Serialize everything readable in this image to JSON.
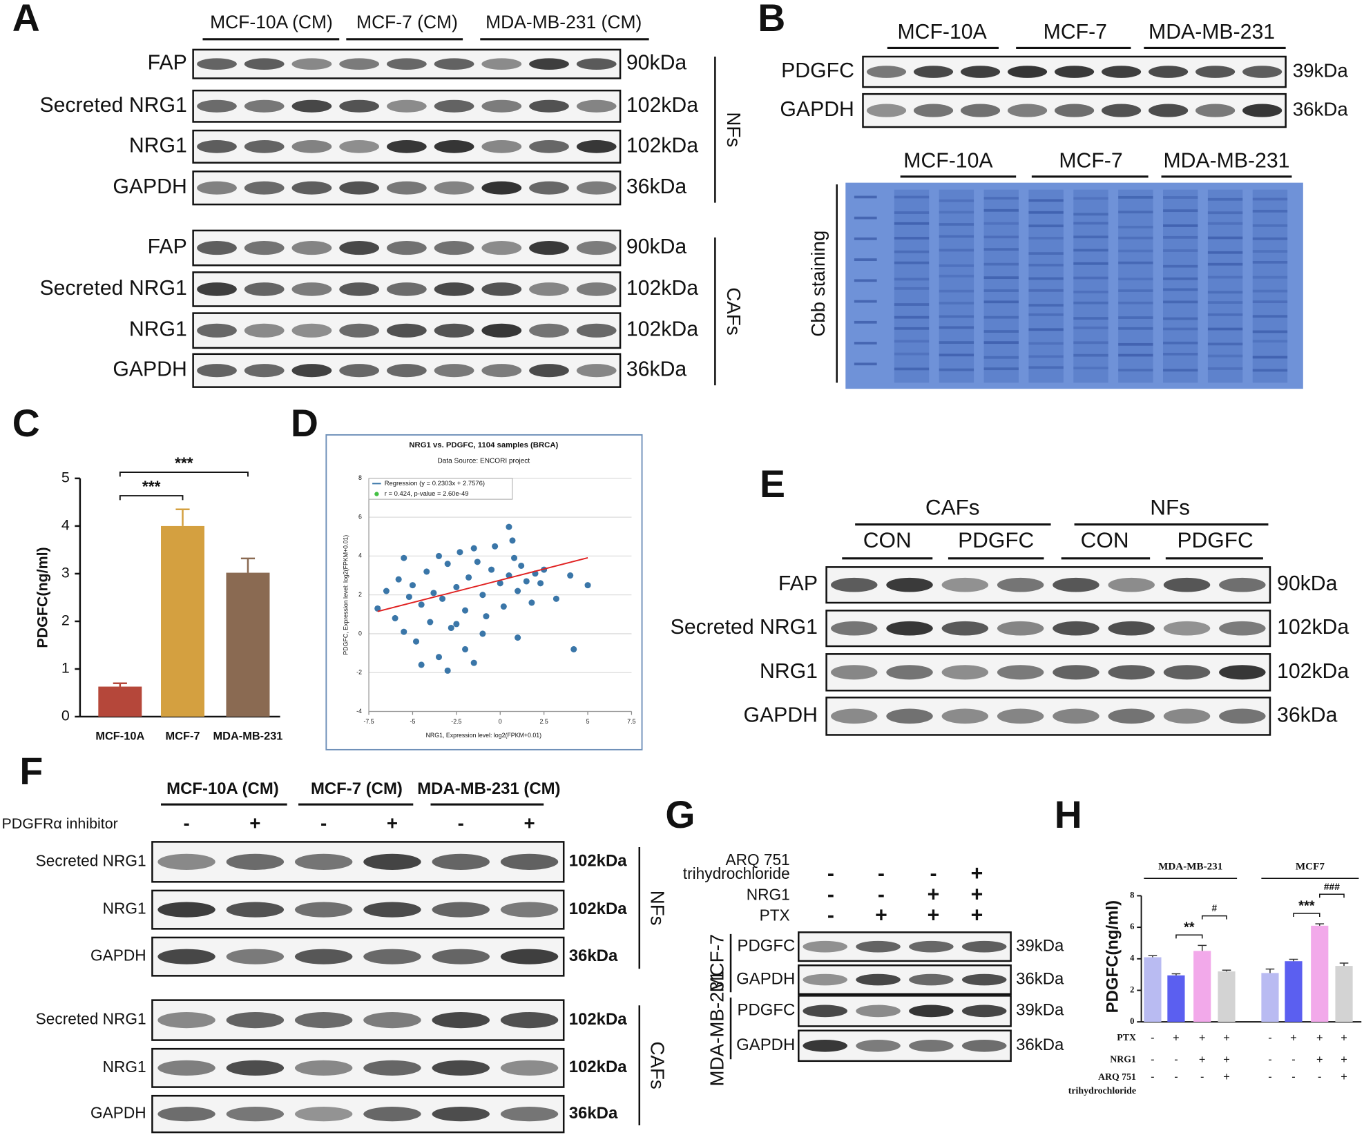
{
  "panel_letters": [
    "A",
    "B",
    "C",
    "D",
    "E",
    "F",
    "G",
    "H"
  ],
  "A": {
    "groups": [
      "MCF-10A (CM)",
      "MCF-7 (CM)",
      "MDA-MB-231 (CM)"
    ],
    "sets": [
      {
        "label": "NFs",
        "blots": [
          {
            "name": "FAP",
            "size": "90kDa"
          },
          {
            "name": "Secreted NRG1",
            "size": "102kDa"
          },
          {
            "name": "NRG1",
            "size": "102kDa"
          },
          {
            "name": "GAPDH",
            "size": "36kDa"
          }
        ]
      },
      {
        "label": "CAFs",
        "blots": [
          {
            "name": "FAP",
            "size": "90kDa"
          },
          {
            "name": "Secreted NRG1",
            "size": "102kDa"
          },
          {
            "name": "NRG1",
            "size": "102kDa"
          },
          {
            "name": "GAPDH",
            "size": "36kDa"
          }
        ]
      }
    ]
  },
  "B": {
    "groups": [
      "MCF-10A",
      "MCF-7",
      "MDA-MB-231"
    ],
    "blots": [
      {
        "name": "PDGFC",
        "size": "39kDa"
      },
      {
        "name": "GAPDH",
        "size": "36kDa"
      }
    ],
    "gel_groups": [
      "MCF-10A",
      "MCF-7",
      "MDA-MB-231"
    ],
    "gel_label": "Cbb staining"
  },
  "E": {
    "groups": [
      "CAFs",
      "NFs"
    ],
    "subgroups": [
      "CON",
      "PDGFC",
      "CON",
      "PDGFC"
    ],
    "blots": [
      {
        "name": "FAP",
        "size": "90kDa"
      },
      {
        "name": "Secreted NRG1",
        "size": "102kDa"
      },
      {
        "name": "NRG1",
        "size": "102kDa"
      },
      {
        "name": "GAPDH",
        "size": "36kDa"
      }
    ]
  },
  "F": {
    "groups": [
      "MCF-10A (CM)",
      "MCF-7 (CM)",
      "MDA-MB-231 (CM)"
    ],
    "treatment": "PDGFRα inhibitor",
    "signs": [
      "-",
      "+",
      "-",
      "+",
      "-",
      "+"
    ],
    "sets": [
      {
        "label": "NFs",
        "blots": [
          {
            "name": "Secreted NRG1",
            "size": "102kDa"
          },
          {
            "name": "NRG1",
            "size": "102kDa"
          },
          {
            "name": "GAPDH",
            "size": "36kDa"
          }
        ]
      },
      {
        "label": "CAFs",
        "blots": [
          {
            "name": "Secreted NRG1",
            "size": "102kDa"
          },
          {
            "name": "NRG1",
            "size": "102kDa"
          },
          {
            "name": "GAPDH",
            "size": "36kDa"
          }
        ]
      }
    ]
  },
  "G": {
    "conditions": [
      {
        "name": [
          "ARQ 751",
          "trihydrochloride"
        ],
        "signs": [
          "-",
          "-",
          "-",
          "+"
        ]
      },
      {
        "name": [
          "NRG1"
        ],
        "signs": [
          "-",
          "-",
          "+",
          "+"
        ]
      },
      {
        "name": [
          "PTX"
        ],
        "signs": [
          "-",
          "+",
          "+",
          "+"
        ]
      }
    ],
    "sets": [
      {
        "label": "MCF-7",
        "blots": [
          {
            "name": "PDGFC",
            "size": "39kDa"
          },
          {
            "name": "GAPDH",
            "size": "36kDa"
          }
        ]
      },
      {
        "label": "MDA-MB-231",
        "blots": [
          {
            "name": "PDGFC",
            "size": "39kDa"
          },
          {
            "name": "GAPDH",
            "size": "36kDa"
          }
        ]
      }
    ]
  },
  "chart_data": [
    {
      "type": "bar",
      "categories": [
        "MCF-10A",
        "MCF-7",
        "MDA-MB-231"
      ],
      "values": [
        0.63,
        4.0,
        3.02
      ],
      "errors": [
        0.07,
        0.35,
        0.3
      ],
      "colors": [
        "#b5473a",
        "#d4a040",
        "#8a6a52"
      ],
      "ylabel": "PDGFC(ng/ml)",
      "ylim": [
        0,
        5
      ],
      "yticks": [
        0,
        1,
        2,
        3,
        4,
        5
      ],
      "significance": [
        {
          "pair": [
            "MCF-10A",
            "MCF-7"
          ],
          "label": "***"
        },
        {
          "pair": [
            "MCF-10A",
            "MDA-MB-231"
          ],
          "label": "***"
        }
      ]
    },
    {
      "type": "scatter",
      "title": "NRG1 vs. PDGFC, 1104 samples (BRCA)",
      "subtitle": "Data Source: ENCORI project",
      "legend": [
        "Regression (y = 0.2303x + 2.7576)",
        "r = 0.424, p-value = 2.60e-49"
      ],
      "regression": {
        "slope": 0.2303,
        "intercept": 2.7576
      },
      "xlabel": "NRG1, Expression level: log2(FPKM+0.01)",
      "ylabel": "PDGFC, Expression level: log2(FPKM+0.01)",
      "xlim": [
        -7.5,
        7.5
      ],
      "xticks": [
        -7.5,
        -5,
        -2.5,
        0,
        2.5,
        5,
        7.5
      ],
      "ylim": [
        -4,
        8
      ],
      "yticks": [
        -4,
        -2,
        0,
        2,
        4,
        6,
        8
      ],
      "color": "#3a76a8",
      "x": [
        -7,
        -6.5,
        -6,
        -5.8,
        -5.5,
        -5.2,
        -5,
        -4.8,
        -4.5,
        -4.2,
        -4,
        -3.8,
        -3.5,
        -3.3,
        -3,
        -2.8,
        -2.5,
        -2.3,
        -2,
        -1.8,
        -1.5,
        -1.3,
        -1,
        -0.8,
        -0.5,
        -0.3,
        0,
        0.2,
        0.5,
        0.7,
        1,
        1.2,
        1.5,
        1.8,
        2,
        2.3,
        -4.5,
        -3,
        -2,
        -1,
        -5.5,
        -3.5,
        -1.5,
        0.5,
        -2.5,
        1,
        2.5,
        3.2,
        4,
        5,
        4.2,
        0.8
      ],
      "values": [
        1.3,
        2.2,
        0.8,
        2.8,
        0.1,
        1.9,
        2.5,
        -0.4,
        1.5,
        3.2,
        0.6,
        2.1,
        -1.2,
        1.8,
        3.6,
        0.3,
        2.4,
        4.2,
        1.2,
        2.9,
        -1.5,
        3.7,
        2,
        0.9,
        3.3,
        4.5,
        2.6,
        1.4,
        3,
        4.8,
        2.2,
        3.5,
        2.7,
        1.6,
        3.1,
        2.6,
        -1.6,
        -1.9,
        -0.8,
        0,
        3.9,
        4,
        4.4,
        5.5,
        0.5,
        -0.2,
        3.3,
        1.8,
        3,
        2.5,
        -0.8,
        3.9
      ]
    },
    {
      "type": "grouped_bar",
      "groups": [
        "MDA-MB-231",
        "MCF7"
      ],
      "ylabel": "PDGFC(ng/ml)",
      "ylim": [
        0,
        8
      ],
      "yticks": [
        0,
        2,
        4,
        6,
        8
      ],
      "series": [
        {
          "color": "#b9bbf2",
          "values": [
            4.1,
            3.1
          ],
          "errors": [
            0.1,
            0.25
          ]
        },
        {
          "color": "#5b5ff0",
          "values": [
            2.95,
            3.85
          ],
          "errors": [
            0.1,
            0.12
          ]
        },
        {
          "color": "#f2a9ea",
          "values": [
            4.5,
            6.1
          ],
          "errors": [
            0.35,
            0.12
          ]
        },
        {
          "color": "#d3d3d3",
          "values": [
            3.2,
            3.55
          ],
          "errors": [
            0.08,
            0.18
          ]
        }
      ],
      "significance": [
        [
          "**",
          "#"
        ],
        [
          "***",
          "###"
        ]
      ],
      "conditions": [
        {
          "name": [
            "PTX"
          ],
          "signs": [
            "-",
            "+",
            "+",
            "+"
          ]
        },
        {
          "name": [
            "NRG1"
          ],
          "signs": [
            "-",
            "-",
            "+",
            "+"
          ]
        },
        {
          "name": [
            "ARQ 751",
            "trihydrochloride"
          ],
          "signs": [
            "-",
            "-",
            "-",
            "+"
          ]
        }
      ]
    }
  ]
}
